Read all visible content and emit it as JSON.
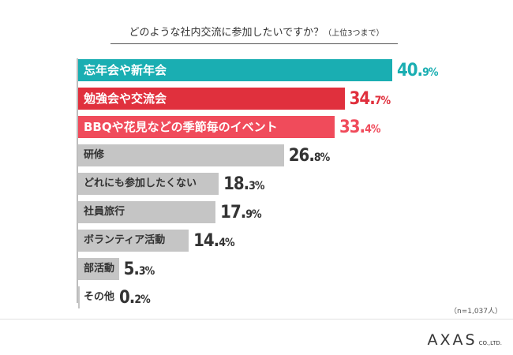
{
  "title_main": "どのような社内交流に参加したいですか？",
  "title_sub": "（上位3つまで）",
  "note": "（n=1,037人）",
  "logo": {
    "text": "AXAS",
    "sub": "CO.,LTD."
  },
  "colors": {
    "teal": "#1aaeb2",
    "red": "#e0303d",
    "pink": "#f04b5b",
    "gray": "#c5c5c5",
    "grayText": "#333333"
  },
  "chart_data": {
    "type": "bar",
    "orientation": "horizontal",
    "title": "どのような社内交流に参加したいですか？（上位3つまで）",
    "categories": [
      "忘年会や新年会",
      "勉強会や交流会",
      "BBQや花見などの季節毎のイベント",
      "研修",
      "どれにも参加したくない",
      "社員旅行",
      "ボランティア活動",
      "部活動",
      "その他"
    ],
    "values": [
      40.9,
      34.7,
      33.4,
      26.8,
      18.3,
      17.9,
      14.4,
      5.3,
      0.2
    ],
    "value_labels": [
      {
        "int": "40.",
        "dec": "9",
        "pct": "%"
      },
      {
        "int": "34.",
        "dec": "7",
        "pct": "%"
      },
      {
        "int": "33.",
        "dec": "4",
        "pct": "%"
      },
      {
        "int": "26.",
        "dec": "8",
        "pct": "%"
      },
      {
        "int": "18.",
        "dec": "3",
        "pct": "%"
      },
      {
        "int": "17.",
        "dec": "9",
        "pct": "%"
      },
      {
        "int": "14.",
        "dec": "4",
        "pct": "%"
      },
      {
        "int": "5.",
        "dec": "3",
        "pct": "%"
      },
      {
        "int": "0.",
        "dec": "2",
        "pct": "%"
      }
    ],
    "unit": "%",
    "xlim": [
      0,
      40.9
    ],
    "grid": false,
    "highlight_colors": [
      "#1aaeb2",
      "#e0303d",
      "#f04b5b"
    ]
  }
}
